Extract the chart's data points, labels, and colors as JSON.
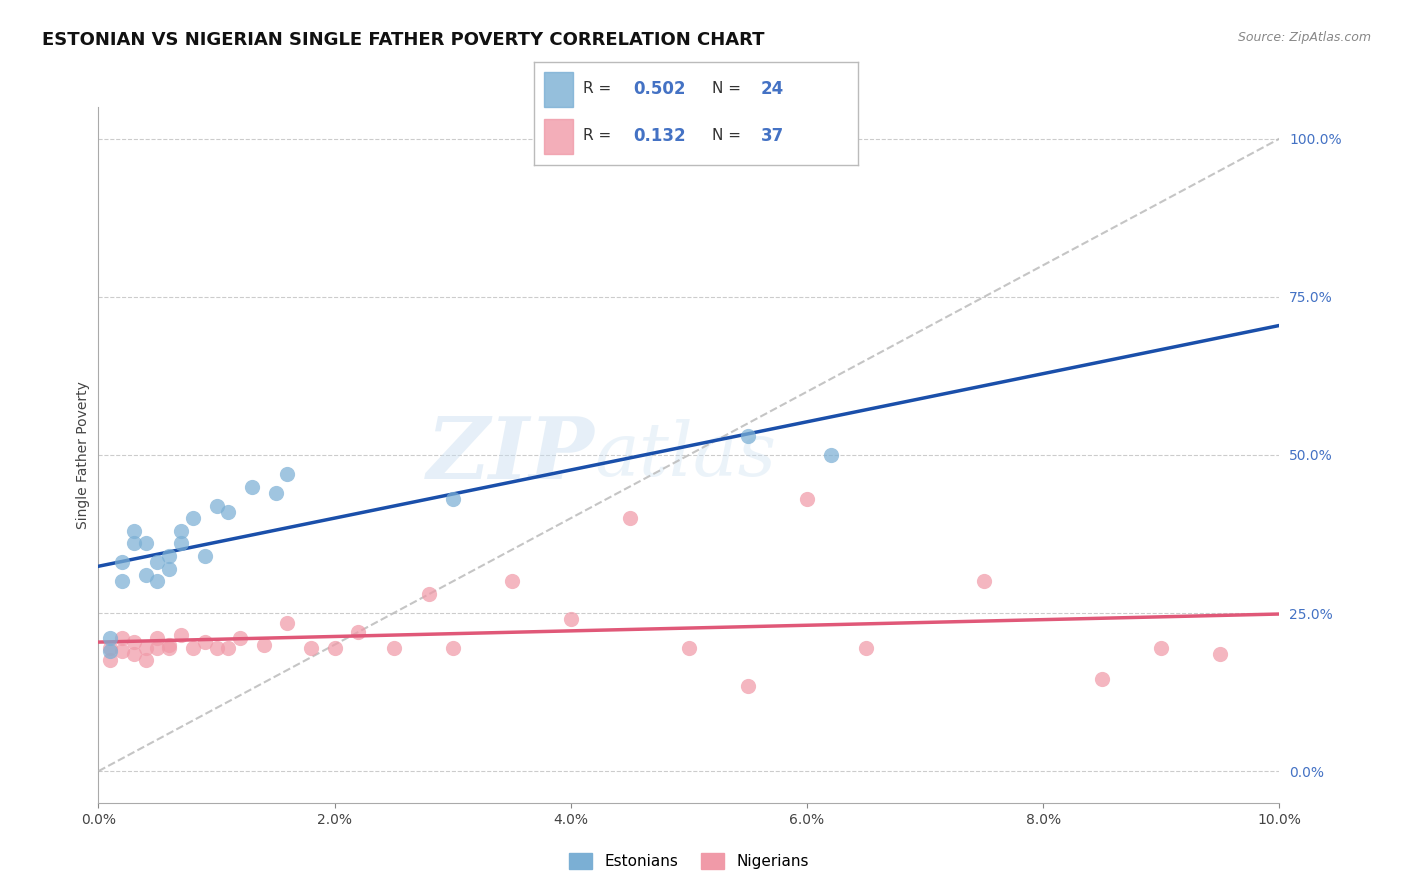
{
  "title": "ESTONIAN VS NIGERIAN SINGLE FATHER POVERTY CORRELATION CHART",
  "source_text": "Source: ZipAtlas.com",
  "ylabel": "Single Father Poverty",
  "watermark_1": "ZIP",
  "watermark_2": "atlas",
  "xlim": [
    0.0,
    0.1
  ],
  "ylim": [
    -0.05,
    1.05
  ],
  "xticks": [
    0.0,
    0.02,
    0.04,
    0.06,
    0.08,
    0.1
  ],
  "xtick_labels": [
    "0.0%",
    "2.0%",
    "4.0%",
    "6.0%",
    "8.0%",
    "10.0%"
  ],
  "yticks_right": [
    0.0,
    0.25,
    0.5,
    0.75,
    1.0
  ],
  "ytick_labels_right": [
    "0.0%",
    "25.0%",
    "50.0%",
    "75.0%",
    "100.0%"
  ],
  "estonian_color": "#7bafd4",
  "nigerian_color": "#f09aa8",
  "trend_blue": "#1a4faa",
  "trend_pink": "#e05878",
  "diag_color": "#bbbbbb",
  "grid_color": "#cccccc",
  "background_color": "#ffffff",
  "est_R": "0.502",
  "est_N": "24",
  "nig_R": "0.132",
  "nig_N": "37",
  "estonian_x": [
    0.001,
    0.001,
    0.002,
    0.002,
    0.003,
    0.003,
    0.004,
    0.004,
    0.005,
    0.005,
    0.006,
    0.006,
    0.007,
    0.007,
    0.008,
    0.009,
    0.01,
    0.011,
    0.013,
    0.015,
    0.016,
    0.03,
    0.055,
    0.062
  ],
  "estonian_y": [
    0.21,
    0.19,
    0.33,
    0.3,
    0.36,
    0.38,
    0.31,
    0.36,
    0.33,
    0.3,
    0.32,
    0.34,
    0.38,
    0.36,
    0.4,
    0.34,
    0.42,
    0.41,
    0.45,
    0.44,
    0.47,
    0.43,
    0.53,
    0.5
  ],
  "nigerian_x": [
    0.001,
    0.001,
    0.002,
    0.002,
    0.003,
    0.003,
    0.004,
    0.004,
    0.005,
    0.005,
    0.006,
    0.006,
    0.007,
    0.008,
    0.009,
    0.01,
    0.011,
    0.012,
    0.014,
    0.016,
    0.018,
    0.02,
    0.022,
    0.025,
    0.028,
    0.03,
    0.035,
    0.04,
    0.045,
    0.05,
    0.055,
    0.06,
    0.065,
    0.075,
    0.085,
    0.09,
    0.095
  ],
  "nigerian_y": [
    0.195,
    0.175,
    0.21,
    0.19,
    0.205,
    0.185,
    0.195,
    0.175,
    0.21,
    0.195,
    0.195,
    0.2,
    0.215,
    0.195,
    0.205,
    0.195,
    0.195,
    0.21,
    0.2,
    0.235,
    0.195,
    0.195,
    0.22,
    0.195,
    0.28,
    0.195,
    0.3,
    0.24,
    0.4,
    0.195,
    0.135,
    0.43,
    0.195,
    0.3,
    0.145,
    0.195,
    0.185
  ],
  "title_fontsize": 13,
  "axis_label_fontsize": 10,
  "tick_fontsize": 10,
  "legend_fontsize": 12
}
